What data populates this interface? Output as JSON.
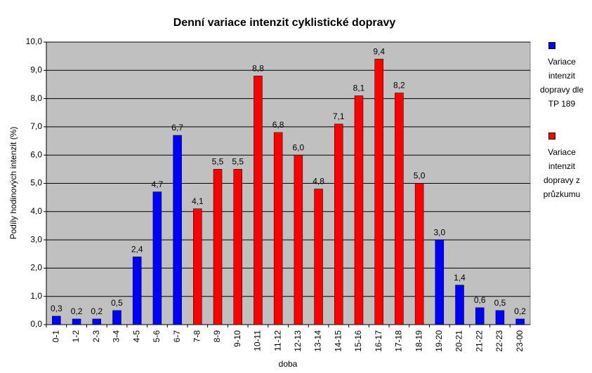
{
  "chart_data": {
    "type": "bar",
    "title": "Denní variace intenzit cyklistické dopravy",
    "x_label": "doba",
    "y_label": "Podíly hodinových intenzit (%)",
    "categories": [
      "0-1",
      "1-2",
      "2-3",
      "3-4",
      "4-5",
      "5-6",
      "6-7",
      "7-8",
      "8-9",
      "9-10",
      "10-11",
      "11-12",
      "12-13",
      "13-14",
      "14-15",
      "15-16",
      "16-17",
      "17-18",
      "18-19",
      "19-20",
      "20-21",
      "21-22",
      "22-23",
      "23-00"
    ],
    "series": [
      {
        "name": "Variace intenzit dopravy dle TP 189",
        "color": "#0000ff",
        "values": [
          0.3,
          0.2,
          0.2,
          0.5,
          2.4,
          4.7,
          6.7,
          null,
          null,
          null,
          null,
          null,
          null,
          null,
          null,
          null,
          null,
          null,
          null,
          3.0,
          1.4,
          0.6,
          0.5,
          0.2
        ],
        "value_labels": [
          "0,3",
          "0,2",
          "0,2",
          "0,5",
          "2,4",
          "4,7",
          "6,7",
          null,
          null,
          null,
          null,
          null,
          null,
          null,
          null,
          null,
          null,
          null,
          null,
          "3,0",
          "1,4",
          "0,6",
          "0,5",
          "0,2"
        ]
      },
      {
        "name": "Variace intenzit dopravy z průzkumu",
        "color": "#ff0000",
        "values": [
          null,
          null,
          null,
          null,
          null,
          null,
          null,
          4.1,
          5.5,
          5.5,
          8.8,
          6.8,
          6.0,
          4.8,
          7.1,
          8.1,
          9.4,
          8.2,
          5.0,
          null,
          null,
          null,
          null,
          null
        ],
        "value_labels": [
          null,
          null,
          null,
          null,
          null,
          null,
          null,
          "4,1",
          "5,5",
          "5,5",
          "8,8",
          "6,8",
          "6,0",
          "4,8",
          "7,1",
          "8,1",
          "9,4",
          "8,2",
          "5,0",
          null,
          null,
          null,
          null,
          null
        ]
      }
    ],
    "ylim": [
      0,
      10
    ],
    "yticks": [
      {
        "value": 0,
        "label": "0,0"
      },
      {
        "value": 1,
        "label": "1,0"
      },
      {
        "value": 2,
        "label": "2,0"
      },
      {
        "value": 3,
        "label": "3,0"
      },
      {
        "value": 4,
        "label": "4,0"
      },
      {
        "value": 5,
        "label": "5,0"
      },
      {
        "value": 6,
        "label": "6,0"
      },
      {
        "value": 7,
        "label": "7,0"
      },
      {
        "value": 8,
        "label": "8,0"
      },
      {
        "value": 9,
        "label": "9,0"
      },
      {
        "value": 10,
        "label": "10,0"
      }
    ],
    "grid": true,
    "legend": "right"
  }
}
